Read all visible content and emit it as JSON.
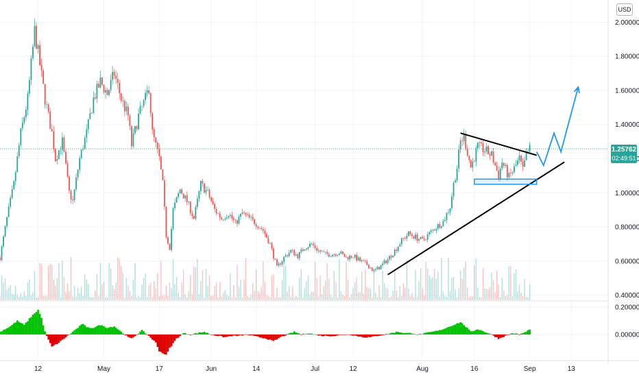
{
  "currency_button": "USD",
  "last_price": {
    "value": "1.25762",
    "countdown": "02:49:51",
    "color": "#26a69a"
  },
  "colors": {
    "up": "#26a69a",
    "down": "#ef5350",
    "grid": "#f0f3fa",
    "trendline": "#000000",
    "projection": "#2196f3",
    "oscillator_up": "#00c200",
    "oscillator_down": "#e00000"
  },
  "chart_data": [
    {
      "type": "candlestick",
      "title": "",
      "currency": "USD",
      "ylim": [
        0.37,
        2.05
      ],
      "y_ticks": [
        "2.00000",
        "1.80000",
        "1.60000",
        "1.40000",
        "1.20000",
        "1.00000",
        "0.80000",
        "0.60000",
        "0.40000"
      ],
      "y_tick_values": [
        2.0,
        1.8,
        1.6,
        1.4,
        1.2,
        1.0,
        0.8,
        0.6,
        0.4
      ],
      "x_ticks": [
        "12",
        "May",
        "17",
        "Jun",
        "14",
        "Jul",
        "12",
        "Aug",
        "16",
        "Sep",
        "13"
      ],
      "x_tick_days": [
        11,
        30,
        46,
        61,
        74,
        91,
        102,
        122,
        137,
        153,
        165
      ],
      "last_day": 153,
      "price_path": [
        [
          0,
          0.62
        ],
        [
          2,
          0.85
        ],
        [
          4,
          1.05
        ],
        [
          6,
          1.35
        ],
        [
          8,
          1.55
        ],
        [
          10,
          1.95
        ],
        [
          11,
          1.82
        ],
        [
          13,
          1.55
        ],
        [
          15,
          1.35
        ],
        [
          16,
          1.2
        ],
        [
          18,
          1.3
        ],
        [
          20,
          1.0
        ],
        [
          21,
          0.95
        ],
        [
          23,
          1.2
        ],
        [
          25,
          1.35
        ],
        [
          27,
          1.55
        ],
        [
          29,
          1.65
        ],
        [
          31,
          1.58
        ],
        [
          33,
          1.7
        ],
        [
          35,
          1.55
        ],
        [
          37,
          1.45
        ],
        [
          38,
          1.28
        ],
        [
          40,
          1.45
        ],
        [
          42,
          1.55
        ],
        [
          43,
          1.62
        ],
        [
          44,
          1.35
        ],
        [
          46,
          1.2
        ],
        [
          47,
          1.05
        ],
        [
          48,
          0.75
        ],
        [
          49,
          0.68
        ],
        [
          50,
          0.9
        ],
        [
          52,
          1.02
        ],
        [
          54,
          0.95
        ],
        [
          56,
          0.85
        ],
        [
          58,
          1.05
        ],
        [
          60,
          1.0
        ],
        [
          62,
          0.9
        ],
        [
          64,
          0.85
        ],
        [
          66,
          0.88
        ],
        [
          68,
          0.82
        ],
        [
          70,
          0.88
        ],
        [
          72,
          0.85
        ],
        [
          74,
          0.82
        ],
        [
          76,
          0.78
        ],
        [
          78,
          0.7
        ],
        [
          80,
          0.56
        ],
        [
          82,
          0.62
        ],
        [
          84,
          0.66
        ],
        [
          86,
          0.63
        ],
        [
          88,
          0.68
        ],
        [
          90,
          0.7
        ],
        [
          92,
          0.66
        ],
        [
          94,
          0.64
        ],
        [
          96,
          0.64
        ],
        [
          98,
          0.65
        ],
        [
          100,
          0.62
        ],
        [
          102,
          0.63
        ],
        [
          104,
          0.6
        ],
        [
          106,
          0.58
        ],
        [
          108,
          0.54
        ],
        [
          110,
          0.57
        ],
        [
          112,
          0.61
        ],
        [
          114,
          0.66
        ],
        [
          116,
          0.72
        ],
        [
          118,
          0.76
        ],
        [
          120,
          0.74
        ],
        [
          122,
          0.72
        ],
        [
          124,
          0.76
        ],
        [
          126,
          0.8
        ],
        [
          128,
          0.83
        ],
        [
          130,
          0.92
        ],
        [
          131,
          1.05
        ],
        [
          132,
          1.15
        ],
        [
          133,
          1.3
        ],
        [
          134,
          1.33
        ],
        [
          136,
          1.15
        ],
        [
          138,
          1.27
        ],
        [
          140,
          1.25
        ],
        [
          142,
          1.22
        ],
        [
          144,
          1.1
        ],
        [
          145,
          1.18
        ],
        [
          147,
          1.09
        ],
        [
          149,
          1.16
        ],
        [
          150,
          1.2
        ],
        [
          151,
          1.13
        ],
        [
          152,
          1.22
        ],
        [
          153,
          1.25762
        ]
      ],
      "oscillator": {
        "ylim": [
          -0.17,
          0.24
        ],
        "y_ticks": [
          "0.20000",
          "0.00000"
        ],
        "y_tick_values": [
          0.2,
          0.0
        ],
        "path": [
          [
            0,
            0.02
          ],
          [
            3,
            0.06
          ],
          [
            5,
            0.1
          ],
          [
            7,
            0.07
          ],
          [
            9,
            0.13
          ],
          [
            11,
            0.18
          ],
          [
            12,
            0.12
          ],
          [
            13,
            0.02
          ],
          [
            14,
            -0.04
          ],
          [
            15,
            -0.09
          ],
          [
            17,
            -0.06
          ],
          [
            19,
            -0.02
          ],
          [
            20,
            0.0
          ],
          [
            22,
            0.04
          ],
          [
            24,
            0.08
          ],
          [
            25,
            0.05
          ],
          [
            27,
            0.05
          ],
          [
            29,
            0.07
          ],
          [
            31,
            0.05
          ],
          [
            33,
            0.06
          ],
          [
            35,
            0.02
          ],
          [
            37,
            -0.02
          ],
          [
            38,
            -0.03
          ],
          [
            40,
            0.01
          ],
          [
            41,
            0.03
          ],
          [
            43,
            -0.01
          ],
          [
            45,
            -0.06
          ],
          [
            46,
            -0.12
          ],
          [
            48,
            -0.15
          ],
          [
            49,
            -0.1
          ],
          [
            51,
            -0.03
          ],
          [
            53,
            0.01
          ],
          [
            55,
            0.0
          ],
          [
            57,
            0.01
          ],
          [
            59,
            0.02
          ],
          [
            61,
            0.0
          ],
          [
            63,
            -0.01
          ],
          [
            65,
            -0.02
          ],
          [
            67,
            -0.01
          ],
          [
            69,
            -0.01
          ],
          [
            71,
            0.0
          ],
          [
            73,
            -0.01
          ],
          [
            75,
            -0.02
          ],
          [
            77,
            -0.03
          ],
          [
            79,
            -0.05
          ],
          [
            81,
            -0.02
          ],
          [
            83,
            0.0
          ],
          [
            85,
            0.02
          ],
          [
            87,
            0.0
          ],
          [
            89,
            0.01
          ],
          [
            91,
            0.0
          ],
          [
            93,
            -0.01
          ],
          [
            95,
            -0.01
          ],
          [
            97,
            -0.01
          ],
          [
            99,
            0.0
          ],
          [
            101,
            0.0
          ],
          [
            103,
            -0.01
          ],
          [
            105,
            -0.02
          ],
          [
            107,
            -0.02
          ],
          [
            109,
            -0.01
          ],
          [
            111,
            0.0
          ],
          [
            113,
            0.01
          ],
          [
            115,
            0.02
          ],
          [
            117,
            0.01
          ],
          [
            119,
            0.01
          ],
          [
            121,
            0.0
          ],
          [
            123,
            0.01
          ],
          [
            125,
            0.02
          ],
          [
            127,
            0.03
          ],
          [
            129,
            0.05
          ],
          [
            131,
            0.07
          ],
          [
            133,
            0.09
          ],
          [
            134,
            0.07
          ],
          [
            136,
            0.02
          ],
          [
            138,
            0.04
          ],
          [
            140,
            0.02
          ],
          [
            142,
            0.0
          ],
          [
            144,
            -0.03
          ],
          [
            146,
            -0.01
          ],
          [
            148,
            0.01
          ],
          [
            150,
            0.0
          ],
          [
            152,
            0.02
          ],
          [
            153,
            0.04
          ]
        ]
      },
      "trendlines": [
        {
          "name": "ascending-support",
          "points": [
            [
              112,
              0.52
            ],
            [
              163,
              1.18
            ]
          ]
        },
        {
          "name": "descending-resistance",
          "points": [
            [
              133,
              1.35
            ],
            [
              155,
              1.22
            ]
          ]
        }
      ],
      "support_box": {
        "x": [
          137,
          155
        ],
        "y": [
          1.05,
          1.08
        ]
      },
      "projection": [
        [
          155,
          1.24
        ],
        [
          157,
          1.16
        ],
        [
          160,
          1.35
        ],
        [
          162,
          1.24
        ],
        [
          167,
          1.62
        ]
      ]
    }
  ]
}
